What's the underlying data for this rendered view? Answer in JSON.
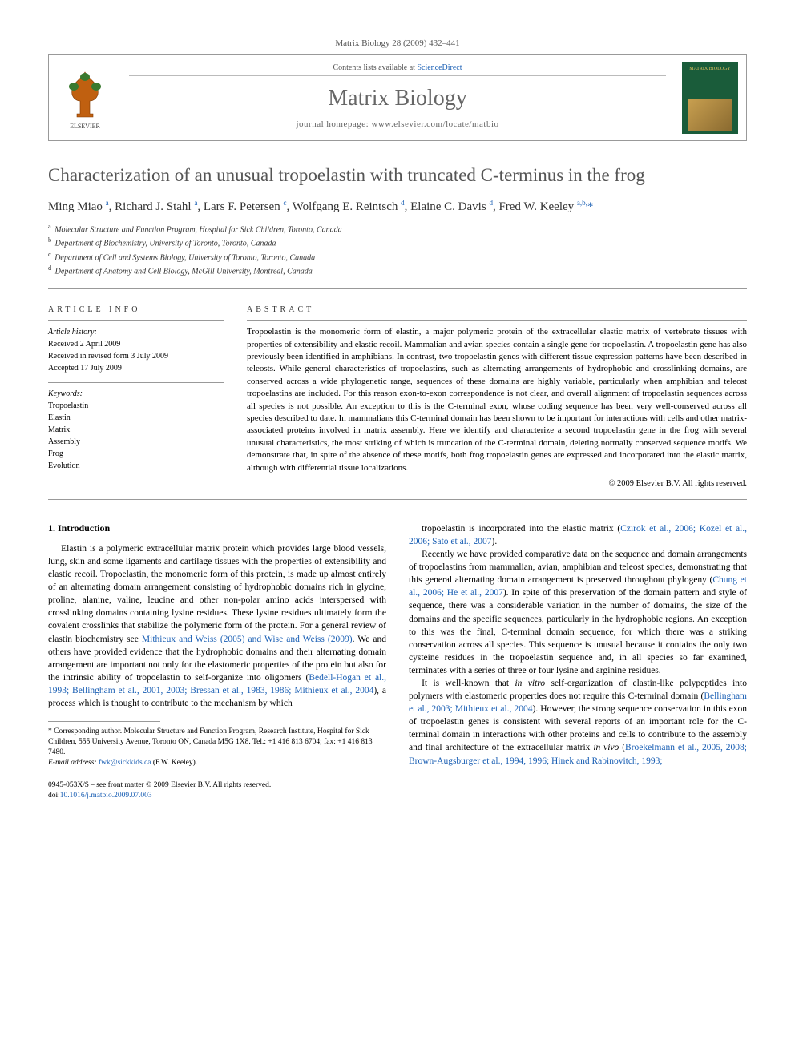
{
  "running_head": "Matrix Biology 28 (2009) 432–441",
  "header": {
    "contents_prefix": "Contents lists available at ",
    "contents_link": "ScienceDirect",
    "journal": "Matrix Biology",
    "homepage_label": "journal homepage: ",
    "homepage_url": "www.elsevier.com/locate/matbio",
    "cover_text": "MATRIX BIOLOGY"
  },
  "title": "Characterization of an unusual tropoelastin with truncated C-terminus in the frog",
  "authors_html": "Ming Miao <sup>a</sup>, Richard J. Stahl <sup>a</sup>, Lars F. Petersen <sup>c</sup>, Wolfgang E. Reintsch <sup>d</sup>, Elaine C. Davis <sup>d</sup>, Fred W. Keeley <sup>a,b,</sup><span class='star'>*</span>",
  "affiliations": [
    {
      "sup": "a",
      "text": "Molecular Structure and Function Program, Hospital for Sick Children, Toronto, Canada"
    },
    {
      "sup": "b",
      "text": "Department of Biochemistry, University of Toronto, Toronto, Canada"
    },
    {
      "sup": "c",
      "text": "Department of Cell and Systems Biology, University of Toronto, Toronto, Canada"
    },
    {
      "sup": "d",
      "text": "Department of Anatomy and Cell Biology, McGill University, Montreal, Canada"
    }
  ],
  "article_info": {
    "heading": "ARTICLE INFO",
    "history_label": "Article history:",
    "history": [
      "Received 2 April 2009",
      "Received in revised form 3 July 2009",
      "Accepted 17 July 2009"
    ],
    "keywords_label": "Keywords:",
    "keywords": [
      "Tropoelastin",
      "Elastin",
      "Matrix",
      "Assembly",
      "Frog",
      "Evolution"
    ]
  },
  "abstract": {
    "heading": "ABSTRACT",
    "text": "Tropoelastin is the monomeric form of elastin, a major polymeric protein of the extracellular elastic matrix of vertebrate tissues with properties of extensibility and elastic recoil. Mammalian and avian species contain a single gene for tropoelastin. A tropoelastin gene has also previously been identified in amphibians. In contrast, two tropoelastin genes with different tissue expression patterns have been described in teleosts. While general characteristics of tropoelastins, such as alternating arrangements of hydrophobic and crosslinking domains, are conserved across a wide phylogenetic range, sequences of these domains are highly variable, particularly when amphibian and teleost tropoelastins are included. For this reason exon-to-exon correspondence is not clear, and overall alignment of tropoelastin sequences across all species is not possible. An exception to this is the C-terminal exon, whose coding sequence has been very well-conserved across all species described to date. In mammalians this C-terminal domain has been shown to be important for interactions with cells and other matrix-associated proteins involved in matrix assembly. Here we identify and characterize a second tropoelastin gene in the frog with several unusual characteristics, the most striking of which is truncation of the C-terminal domain, deleting normally conserved sequence motifs. We demonstrate that, in spite of the absence of these motifs, both frog tropoelastin genes are expressed and incorporated into the elastic matrix, although with differential tissue localizations.",
    "copyright": "© 2009 Elsevier B.V. All rights reserved."
  },
  "body": {
    "section_number": "1.",
    "section_title": "Introduction",
    "left": [
      "Elastin is a polymeric extracellular matrix protein which provides large blood vessels, lung, skin and some ligaments and cartilage tissues with the properties of extensibility and elastic recoil. Tropoelastin, the monomeric form of this protein, is made up almost entirely of an alternating domain arrangement consisting of hydrophobic domains rich in glycine, proline, alanine, valine, leucine and other non-polar amino acids interspersed with crosslinking domains containing lysine residues. These lysine residues ultimately form the covalent crosslinks that stabilize the polymeric form of the protein. For a general review of elastin biochemistry see <a class='ref-link' href='#'>Mithieux and Weiss (2005) and Wise and Weiss (2009)</a>. We and others have provided evidence that the hydrophobic domains and their alternating domain arrangement are important not only for the elastomeric properties of the protein but also for the intrinsic ability of tropoelastin to self-organize into oligomers (<a class='ref-link' href='#'>Bedell-Hogan et al., 1993; Bellingham et al., 2001, 2003; Bressan et al., 1983, 1986; Mithieux et al., 2004</a>), a process which is thought to contribute to the mechanism by which"
    ],
    "right": [
      "tropoelastin is incorporated into the elastic matrix (<a class='ref-link' href='#'>Czirok et al., 2006; Kozel et al., 2006; Sato et al., 2007</a>).",
      "Recently we have provided comparative data on the sequence and domain arrangements of tropoelastins from mammalian, avian, amphibian and teleost species, demonstrating that this general alternating domain arrangement is preserved throughout phylogeny (<a class='ref-link' href='#'>Chung et al., 2006; He et al., 2007</a>). In spite of this preservation of the domain pattern and style of sequence, there was a considerable variation in the number of domains, the size of the domains and the specific sequences, particularly in the hydrophobic regions. An exception to this was the final, C-terminal domain sequence, for which there was a striking conservation across all species. This sequence is unusual because it contains the only two cysteine residues in the tropoelastin sequence and, in all species so far examined, terminates with a series of three or four lysine and arginine residues.",
      "It is well-known that <i>in vitro</i> self-organization of elastin-like polypeptides into polymers with elastomeric properties does not require this C-terminal domain (<a class='ref-link' href='#'>Bellingham et al., 2003; Mithieux et al., 2004</a>). However, the strong sequence conservation in this exon of tropoelastin genes is consistent with several reports of an important role for the C-terminal domain in interactions with other proteins and cells to contribute to the assembly and final architecture of the extracellular matrix <i>in vivo</i> (<a class='ref-link' href='#'>Broekelmann et al., 2005, 2008; Brown-Augsburger et al., 1994, 1996; Hinek and Rabinovitch, 1993;</a>"
    ]
  },
  "footnote": {
    "corr": "* Corresponding author. Molecular Structure and Function Program, Research Institute, Hospital for Sick Children, 555 University Avenue, Toronto ON, Canada M5G 1X8. Tel.: +1 416 813 6704; fax: +1 416 813 7480.",
    "email_label": "E-mail address:",
    "email": "fwk@sickkids.ca",
    "email_tail": "(F.W. Keeley)."
  },
  "footer": {
    "line1": "0945-053X/$ – see front matter © 2009 Elsevier B.V. All rights reserved.",
    "doi_label": "doi:",
    "doi": "10.1016/j.matbio.2009.07.003"
  },
  "colors": {
    "link": "#1a5fb4",
    "rule": "#999999",
    "title_gray": "#555555",
    "cover_bg": "#1a5c3a",
    "cover_text": "#e0c060"
  }
}
